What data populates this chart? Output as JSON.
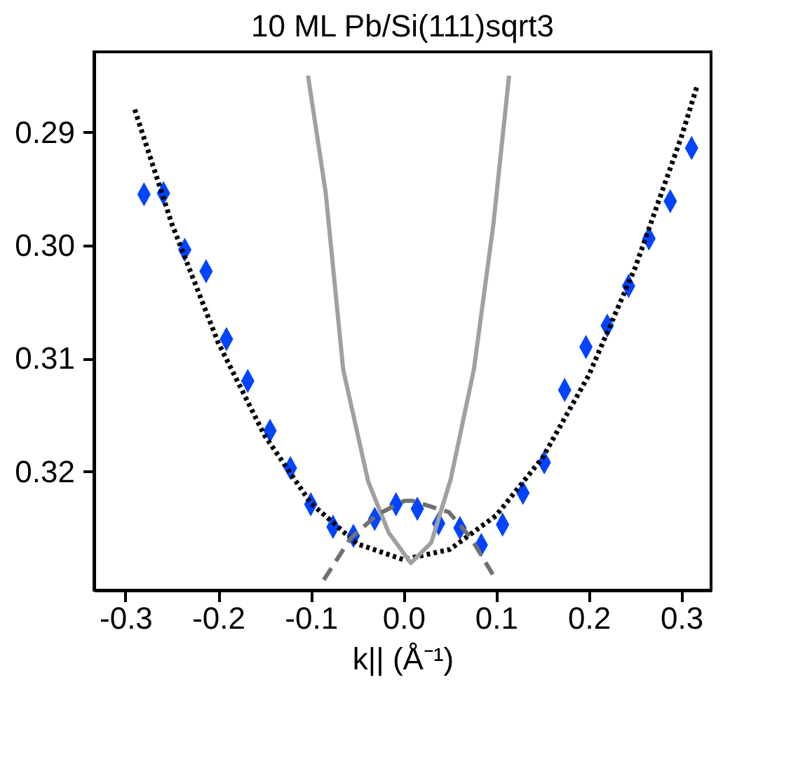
{
  "chart_data": {
    "type": "scatter",
    "title": "10 ML Pb/Si(111)sqrt3",
    "xlabel": "k|| (Å⁻¹)",
    "xlim": [
      -0.334,
      0.332
    ],
    "ylim": [
      0.3305,
      0.2829
    ],
    "xticks": [
      -0.3,
      -0.2,
      -0.1,
      {
        "value": 0,
        "label": "0.0"
      },
      0.1,
      0.2,
      0.3
    ],
    "yticks": [
      0.29,
      {
        "value": 0.3,
        "label": "0.30"
      },
      0.31,
      0.32
    ],
    "grid": false,
    "series": [
      {
        "type": "scatter",
        "marker": "diamond",
        "color": "#0044ff",
        "x": [
          -0.28,
          -0.259,
          -0.236,
          -0.213,
          -0.191,
          -0.168,
          -0.144,
          -0.122,
          -0.1,
          -0.076,
          -0.054,
          -0.031,
          -0.008,
          0.015,
          0.038,
          0.061,
          0.084,
          0.107,
          0.129,
          0.152,
          0.174,
          0.197,
          0.22,
          0.243,
          0.265,
          0.288,
          0.311
        ],
        "values": [
          0.2955,
          0.2954,
          0.3004,
          0.3023,
          0.3083,
          0.312,
          0.3164,
          0.3197,
          0.3229,
          0.3249,
          0.3257,
          0.3242,
          0.3229,
          0.3233,
          0.3246,
          0.325,
          0.3265,
          0.3247,
          0.3219,
          0.3192,
          0.3128,
          0.309,
          0.3071,
          0.3036,
          0.2994,
          0.2961,
          0.2914
        ]
      },
      {
        "type": "line",
        "marker": "none",
        "line_style": "dotted",
        "color": "#000000",
        "x": [
          -0.29,
          -0.25,
          -0.2,
          -0.15,
          -0.1,
          -0.05,
          0,
          0.05,
          0.1,
          0.15,
          0.2,
          0.25,
          0.3,
          0.317
        ],
        "values": [
          0.288,
          0.2981,
          0.3086,
          0.3168,
          0.3228,
          0.3264,
          0.3278,
          0.3269,
          0.3239,
          0.3188,
          0.3115,
          0.302,
          0.2904,
          0.2859
        ]
      },
      {
        "type": "line",
        "marker": "none",
        "line_style": "solid",
        "color": "#a0a0a0",
        "x": [
          -0.103,
          -0.084,
          -0.065,
          -0.038,
          -0.016,
          0.008,
          0.03,
          0.051,
          0.076,
          0.097,
          0.114
        ],
        "values": [
          0.285,
          0.2953,
          0.311,
          0.3209,
          0.3254,
          0.3281,
          0.3263,
          0.3207,
          0.311,
          0.2982,
          0.285
        ]
      },
      {
        "type": "line",
        "marker": "none",
        "line_style": "dashed",
        "color": "#707070",
        "x": [
          -0.086,
          -0.057,
          -0.028,
          0.001,
          0.01,
          0.049,
          0.073,
          0.1
        ],
        "values": [
          0.3296,
          0.3259,
          0.3238,
          0.3226,
          0.3226,
          0.3236,
          0.3259,
          0.3296
        ]
      }
    ]
  }
}
